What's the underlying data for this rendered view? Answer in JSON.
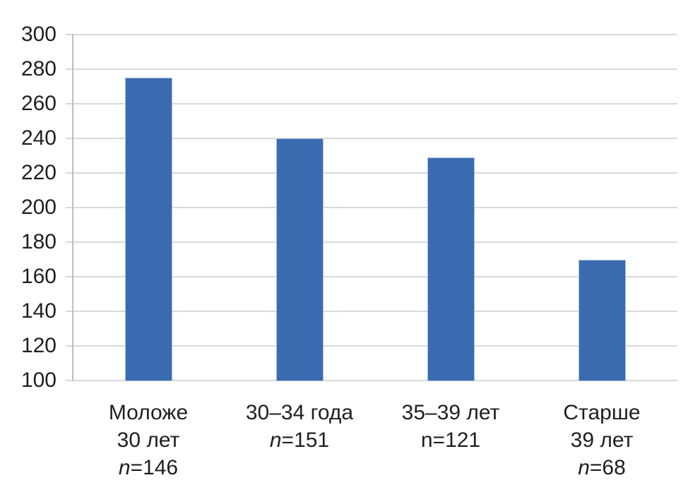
{
  "chart_data": {
    "type": "bar",
    "categories": [
      {
        "lines": [
          "Моложе",
          "30 лет"
        ],
        "n_label": "n=146",
        "n_italic": true
      },
      {
        "lines": [
          "30–34 года"
        ],
        "n_label": "n=151",
        "n_italic": true
      },
      {
        "lines": [
          "35–39 лет"
        ],
        "n_label": "n=121",
        "n_italic": false
      },
      {
        "lines": [
          "Старше",
          "39 лет"
        ],
        "n_label": "n=68",
        "n_italic": true
      }
    ],
    "values": [
      275,
      240,
      229,
      170
    ],
    "ylim": [
      100,
      300
    ],
    "yticks": [
      100,
      120,
      140,
      160,
      180,
      200,
      220,
      240,
      260,
      280,
      300
    ],
    "grid": "horizontal",
    "legend": "none",
    "bar_color": "#3a6bb0",
    "bar_edge_color": "#a9c0de",
    "gridline_color": "#d9d9d9",
    "axis_line_color": "#bfbfbf",
    "text_color": "#1f1f1f",
    "background_color": "#ffffff"
  }
}
